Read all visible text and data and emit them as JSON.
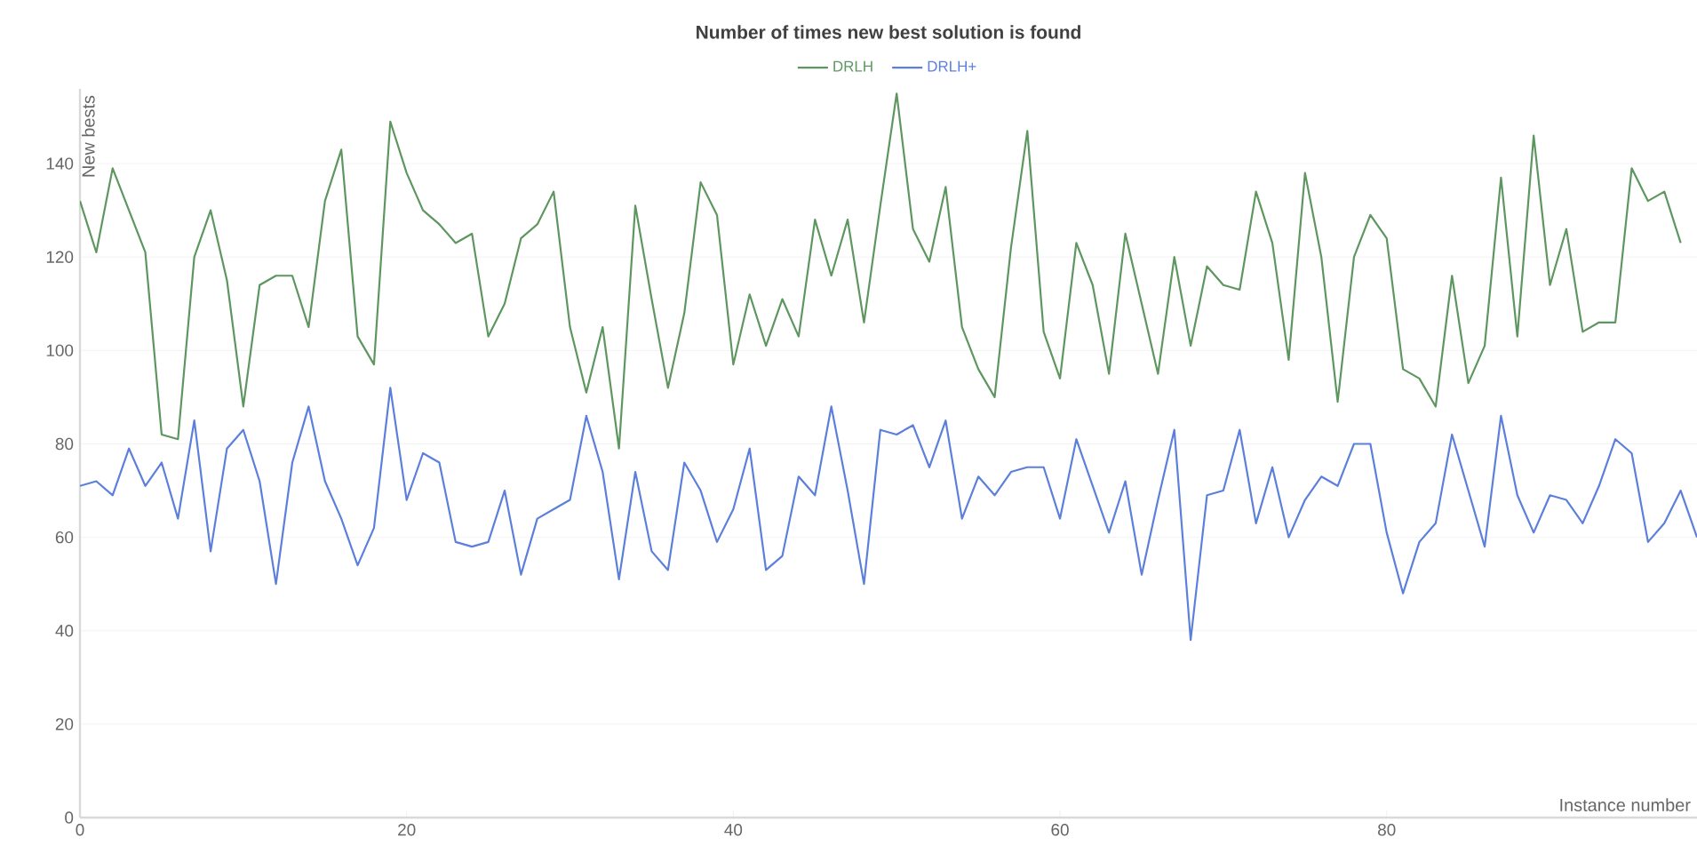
{
  "chart_data": {
    "type": "line",
    "title": "Number of times new best solution is found",
    "xlabel": "Instance number",
    "ylabel": "New bests",
    "x": [
      0,
      1,
      2,
      3,
      4,
      5,
      6,
      7,
      8,
      9,
      10,
      11,
      12,
      13,
      14,
      15,
      16,
      17,
      18,
      19,
      20,
      21,
      22,
      23,
      24,
      25,
      26,
      27,
      28,
      29,
      30,
      31,
      32,
      33,
      34,
      35,
      36,
      37,
      38,
      39,
      40,
      41,
      42,
      43,
      44,
      45,
      46,
      47,
      48,
      49,
      50,
      51,
      52,
      53,
      54,
      55,
      56,
      57,
      58,
      59,
      60,
      61,
      62,
      63,
      64,
      65,
      66,
      67,
      68,
      69,
      70,
      71,
      72,
      73,
      74,
      75,
      76,
      77,
      78,
      79,
      80,
      81,
      82,
      83,
      84,
      85,
      86,
      87,
      88,
      89,
      90,
      91,
      92,
      93,
      94,
      95,
      96,
      97,
      98,
      99
    ],
    "series": [
      {
        "name": "DRLH",
        "color": "#5e9660",
        "values": [
          132,
          121,
          139,
          130,
          121,
          82,
          81,
          120,
          130,
          115,
          88,
          114,
          116,
          116,
          105,
          132,
          143,
          103,
          97,
          149,
          138,
          130,
          127,
          123,
          125,
          103,
          110,
          124,
          127,
          134,
          105,
          91,
          105,
          79,
          131,
          111,
          92,
          108,
          136,
          129,
          97,
          112,
          101,
          111,
          103,
          128,
          116,
          128,
          106,
          131,
          155,
          126,
          119,
          135,
          105,
          96,
          90,
          122,
          147,
          104,
          94,
          123,
          114,
          95,
          125,
          110,
          95,
          120,
          101,
          118,
          114,
          113,
          134,
          123,
          98,
          138,
          120,
          89,
          120,
          129,
          124,
          96,
          94,
          88,
          116,
          93,
          101,
          137,
          103,
          146,
          114,
          126,
          104,
          106,
          106,
          139,
          132,
          134,
          123,
          null
        ]
      },
      {
        "name": "DRLH+",
        "color": "#5b7fdb",
        "values": [
          71,
          72,
          69,
          79,
          71,
          76,
          64,
          85,
          57,
          79,
          83,
          72,
          50,
          76,
          88,
          72,
          64,
          54,
          62,
          92,
          68,
          78,
          76,
          59,
          58,
          59,
          70,
          52,
          64,
          66,
          68,
          86,
          74,
          51,
          74,
          57,
          53,
          76,
          70,
          59,
          66,
          79,
          53,
          56,
          73,
          69,
          88,
          70,
          50,
          83,
          82,
          84,
          75,
          85,
          64,
          73,
          69,
          74,
          75,
          75,
          64,
          81,
          71,
          61,
          72,
          52,
          68,
          83,
          38,
          69,
          70,
          83,
          63,
          75,
          60,
          68,
          73,
          71,
          80,
          80,
          61,
          48,
          59,
          63,
          82,
          70,
          58,
          86,
          69,
          61,
          69,
          68,
          63,
          71,
          81,
          78,
          59,
          63,
          70,
          60
        ]
      }
    ],
    "xlim": [
      0,
      99
    ],
    "ylim": [
      0,
      156
    ],
    "xticks": [
      0,
      20,
      40,
      60,
      80
    ],
    "yticks": [
      0,
      20,
      40,
      60,
      80,
      100,
      120,
      140
    ],
    "grid": "y",
    "legend": "top"
  }
}
